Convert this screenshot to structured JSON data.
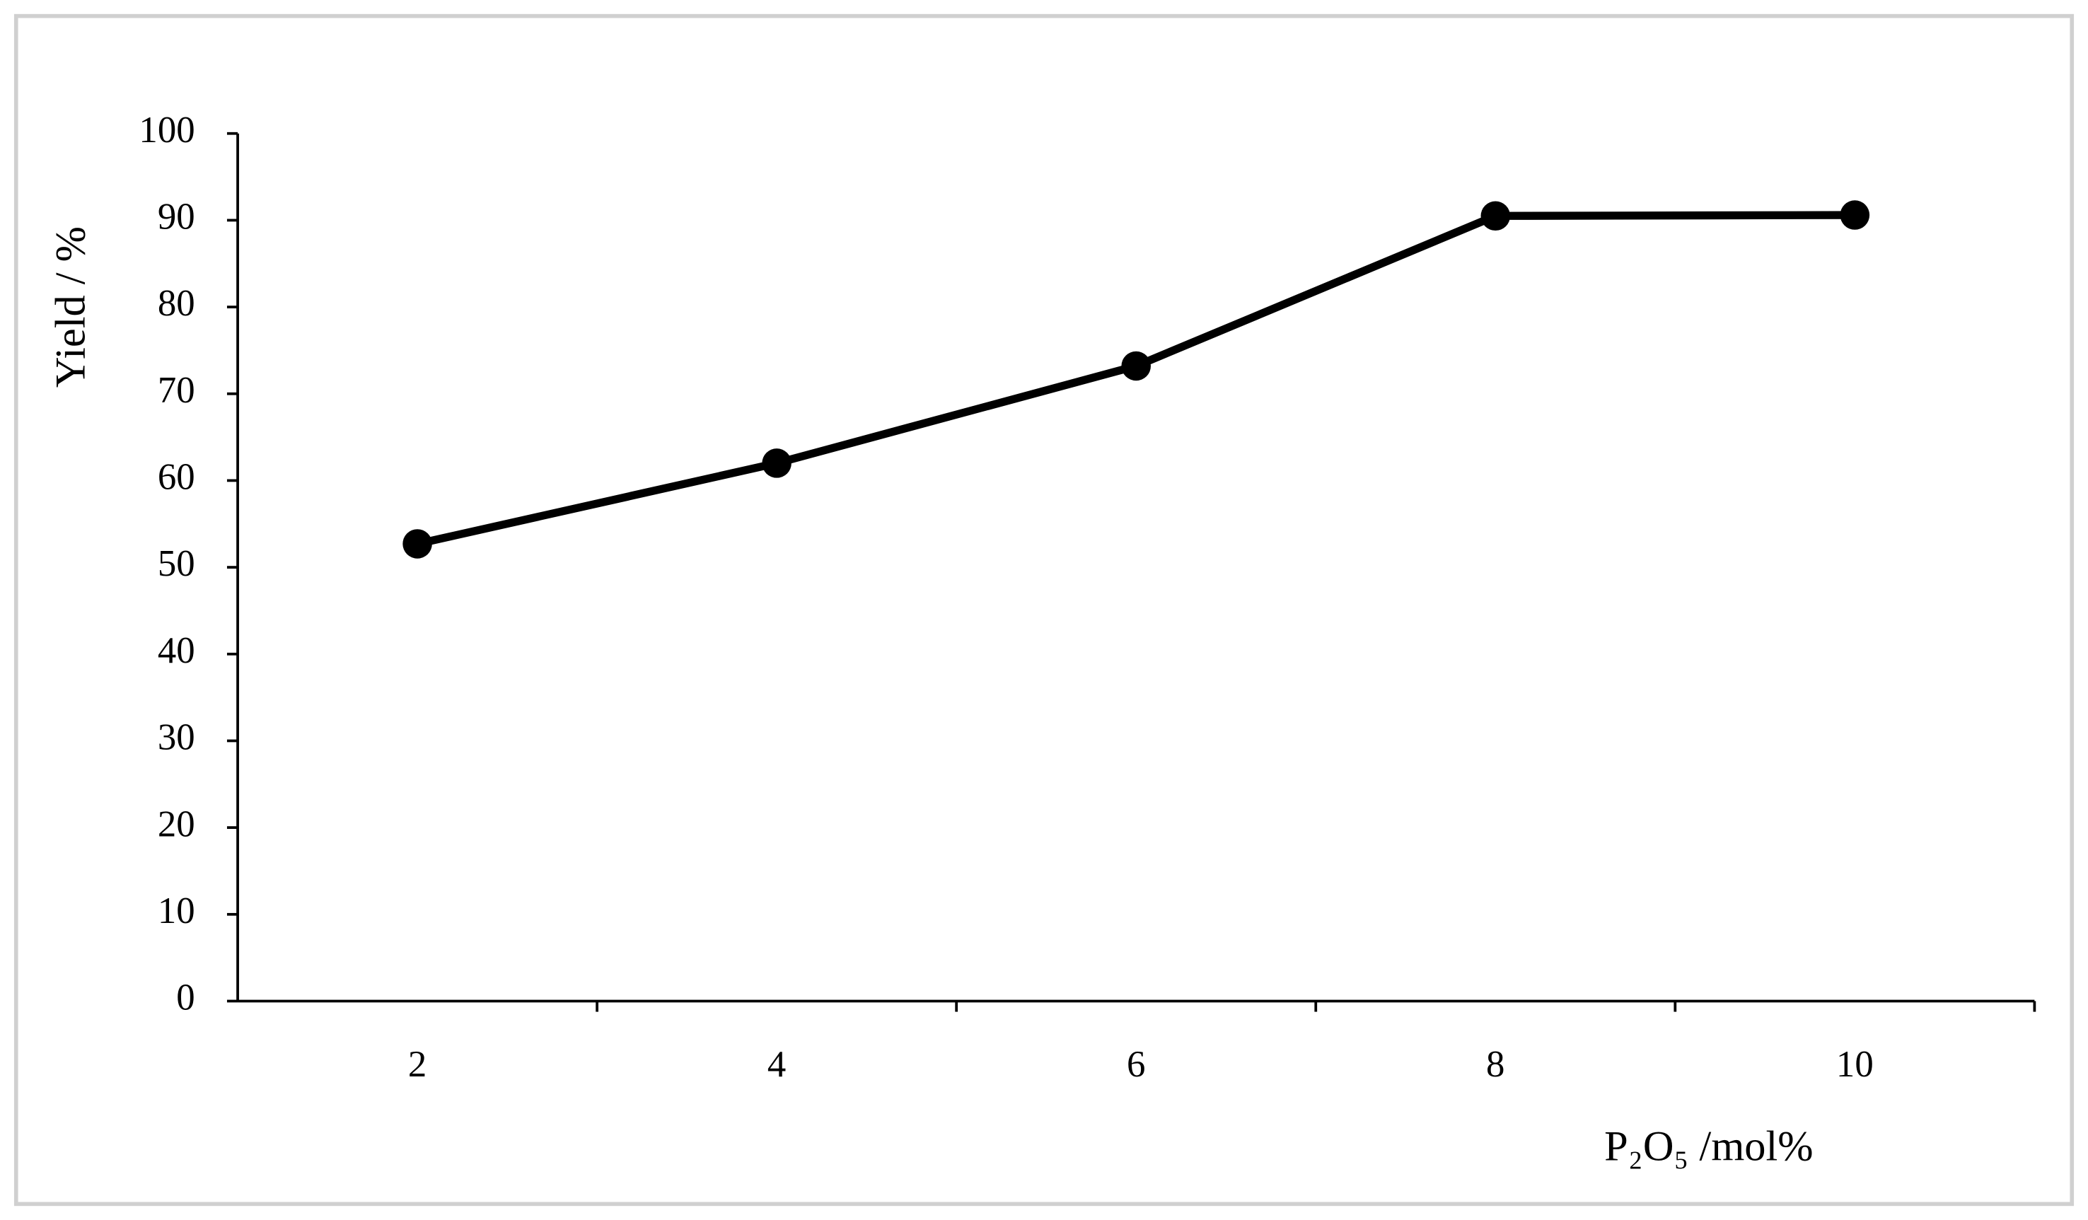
{
  "chart_data": {
    "type": "line",
    "categories": [
      "2",
      "4",
      "6",
      "8",
      "10"
    ],
    "values": [
      52.7,
      62,
      73.2,
      90.5,
      90.6
    ],
    "color": "#000000",
    "xlabel": "P₂O₅ /mol%",
    "ylabel": "Yield / %",
    "ylim": [
      0,
      100
    ],
    "yticks": [
      0,
      10,
      20,
      30,
      40,
      50,
      60,
      70,
      80,
      90,
      100
    ],
    "grid": false
  }
}
